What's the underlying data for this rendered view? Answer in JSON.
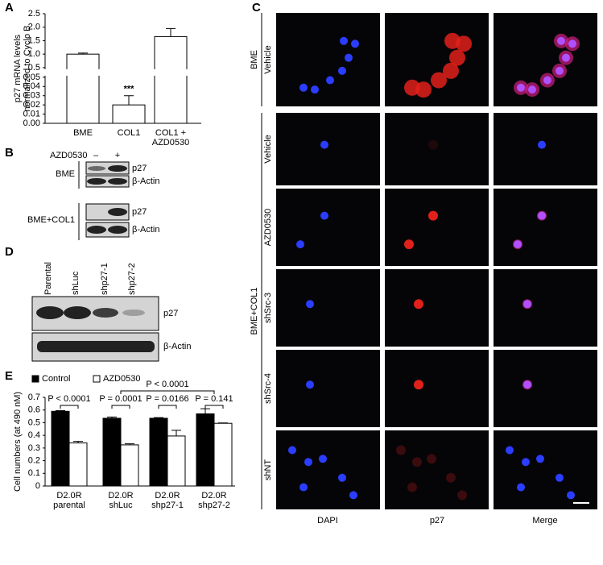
{
  "chart_data": [
    {
      "type": "bar",
      "y_label": [
        "p27 mRNA levels",
        "normalized to Cyclo B"
      ],
      "categories": [
        [
          "BME"
        ],
        [
          "COL1"
        ],
        [
          "COL1 +",
          "AZD0530"
        ]
      ],
      "values": [
        1.0,
        0.02,
        1.65
      ],
      "errors": [
        0.04,
        0.01,
        0.3
      ],
      "color": "#ffffff",
      "ylim": [
        0,
        2.5
      ],
      "axis_break": [
        0.05,
        0.5
      ],
      "yticks": [
        {
          "value": 0,
          "label": "0.00"
        },
        0.01,
        0.02,
        0.03,
        0.04,
        0.05,
        0.5,
        {
          "value": 1,
          "label": "1.0"
        },
        1.5,
        {
          "value": 2,
          "label": "2.0"
        },
        2.5
      ],
      "annotations": [
        "***"
      ]
    },
    {
      "type": "bar",
      "y_label": "Cell numbers (at 490 nM)",
      "categories": [
        [
          "D2.0R",
          "parental"
        ],
        [
          "D2.0R",
          "shLuc"
        ],
        [
          "D2.0R",
          "shp27-1"
        ],
        [
          "D2.0R",
          "shp27-2"
        ]
      ],
      "series": [
        {
          "name": "Control",
          "color": "#000000",
          "values": [
            0.59,
            0.535,
            0.535,
            0.57
          ],
          "errors": [
            0.005,
            0.01,
            0.005,
            0.04
          ]
        },
        {
          "name": "AZD0530",
          "color": "#ffffff",
          "values": [
            0.34,
            0.325,
            0.395,
            0.495
          ],
          "errors": [
            0.012,
            0.008,
            0.045,
            0.003
          ]
        }
      ],
      "ylim": [
        0,
        0.7
      ],
      "yticks": [
        0,
        0.1,
        0.2,
        0.3,
        0.4,
        0.5,
        0.6,
        0.7
      ],
      "annotations": [
        "P < 0.0001",
        "P = 0.0001",
        "P = 0.0166",
        "P = 0.141",
        "P < 0.0001"
      ]
    }
  ],
  "panel_labels": [
    "A",
    "B",
    "C",
    "D",
    "E"
  ],
  "panel_b": {
    "treatment_label": "AZD0530",
    "lanes": [
      "–",
      "+"
    ],
    "groups": [
      {
        "name": "BME",
        "bands": [
          "p27",
          "β-Actin"
        ]
      },
      {
        "name": "BME+COL1",
        "bands": [
          "p27",
          "β-Actin"
        ]
      }
    ]
  },
  "panel_c": {
    "groups": [
      {
        "name": "BME",
        "rows": [
          "Vehicle"
        ]
      },
      {
        "name": "BME+COL1",
        "rows": [
          "Vehicle",
          "AZD0530",
          "shSrc-3",
          "shSrc-4",
          "shNT"
        ]
      }
    ],
    "columns": [
      "DAPI",
      "p27",
      "Merge"
    ]
  },
  "panel_d": {
    "lanes": [
      "Parental",
      "shLuc",
      "shp27-1",
      "shp27-2"
    ],
    "bands": [
      "p27",
      "β-Actin"
    ]
  }
}
